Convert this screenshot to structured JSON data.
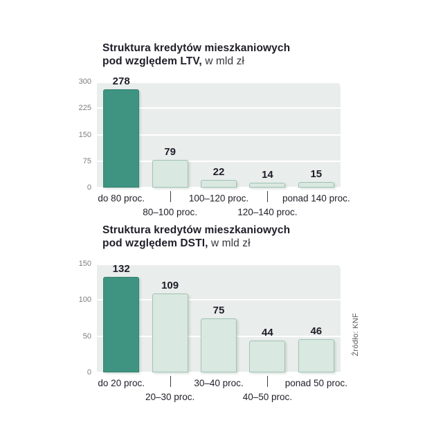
{
  "source_label": "Źródło: KNF",
  "colors": {
    "highlight_bar": "#3f9381",
    "highlight_bar_border": "#35836f",
    "light_bar": "#d9e8e0",
    "light_bar_border": "#9fc3b4",
    "plot_background": "#e9edec",
    "gridline": "#ffffff",
    "value_text": "#1e1e28"
  },
  "chart_data": [
    {
      "type": "bar",
      "title_line1": "Struktura kredytów mieszkaniowych",
      "title_line2_bold": "pod względem LTV,",
      "title_line2_rest": " w mld zł",
      "categories": [
        "do 80 proc.",
        "80–100 proc.",
        "100–120 proc.",
        "120–140 proc.",
        "ponad 140 proc."
      ],
      "values": [
        278,
        79,
        22,
        14,
        15
      ],
      "ylim": [
        0,
        300
      ],
      "yticks": [
        0,
        75,
        150,
        225,
        300
      ],
      "highlight_index": 0,
      "legend": "none",
      "grid": "horizontal"
    },
    {
      "type": "bar",
      "title_line1": "Struktura kredytów mieszkaniowych",
      "title_line2_bold": "pod względem DSTI,",
      "title_line2_rest": " w mld zł",
      "categories": [
        "do 20 proc.",
        "20–30 proc.",
        "30–40 proc.",
        "40–50 proc.",
        "ponad 50 proc."
      ],
      "values": [
        132,
        109,
        75,
        44,
        46
      ],
      "ylim": [
        0,
        150
      ],
      "yticks": [
        0,
        50,
        100,
        150
      ],
      "highlight_index": 0,
      "legend": "none",
      "grid": "horizontal"
    }
  ]
}
